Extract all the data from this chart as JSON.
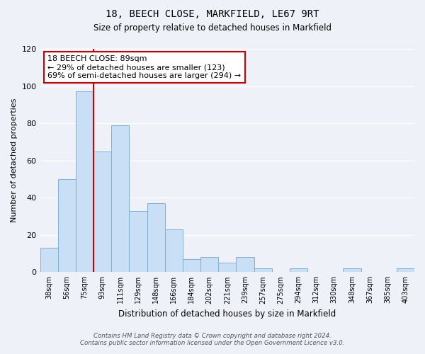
{
  "title1": "18, BEECH CLOSE, MARKFIELD, LE67 9RT",
  "title2": "Size of property relative to detached houses in Markfield",
  "xlabel": "Distribution of detached houses by size in Markfield",
  "ylabel": "Number of detached properties",
  "categories": [
    "38sqm",
    "56sqm",
    "75sqm",
    "93sqm",
    "111sqm",
    "129sqm",
    "148sqm",
    "166sqm",
    "184sqm",
    "202sqm",
    "221sqm",
    "239sqm",
    "257sqm",
    "275sqm",
    "294sqm",
    "312sqm",
    "330sqm",
    "348sqm",
    "367sqm",
    "385sqm",
    "403sqm"
  ],
  "values": [
    13,
    50,
    97,
    65,
    79,
    33,
    37,
    23,
    7,
    8,
    5,
    8,
    2,
    0,
    2,
    0,
    0,
    2,
    0,
    0,
    2
  ],
  "bar_color": "#c9dff5",
  "bar_edge_color": "#7fb0d8",
  "vline_x": 2.5,
  "vline_color": "#cc0000",
  "ylim": [
    0,
    120
  ],
  "yticks": [
    0,
    20,
    40,
    60,
    80,
    100,
    120
  ],
  "annotation_text": "18 BEECH CLOSE: 89sqm\n← 29% of detached houses are smaller (123)\n69% of semi-detached houses are larger (294) →",
  "annotation_box_color": "#ffffff",
  "annotation_box_edge": "#cc0000",
  "footer1": "Contains HM Land Registry data © Crown copyright and database right 2024.",
  "footer2": "Contains public sector information licensed under the Open Government Licence v3.0.",
  "background_color": "#eef2f8",
  "grid_color": "#ffffff"
}
